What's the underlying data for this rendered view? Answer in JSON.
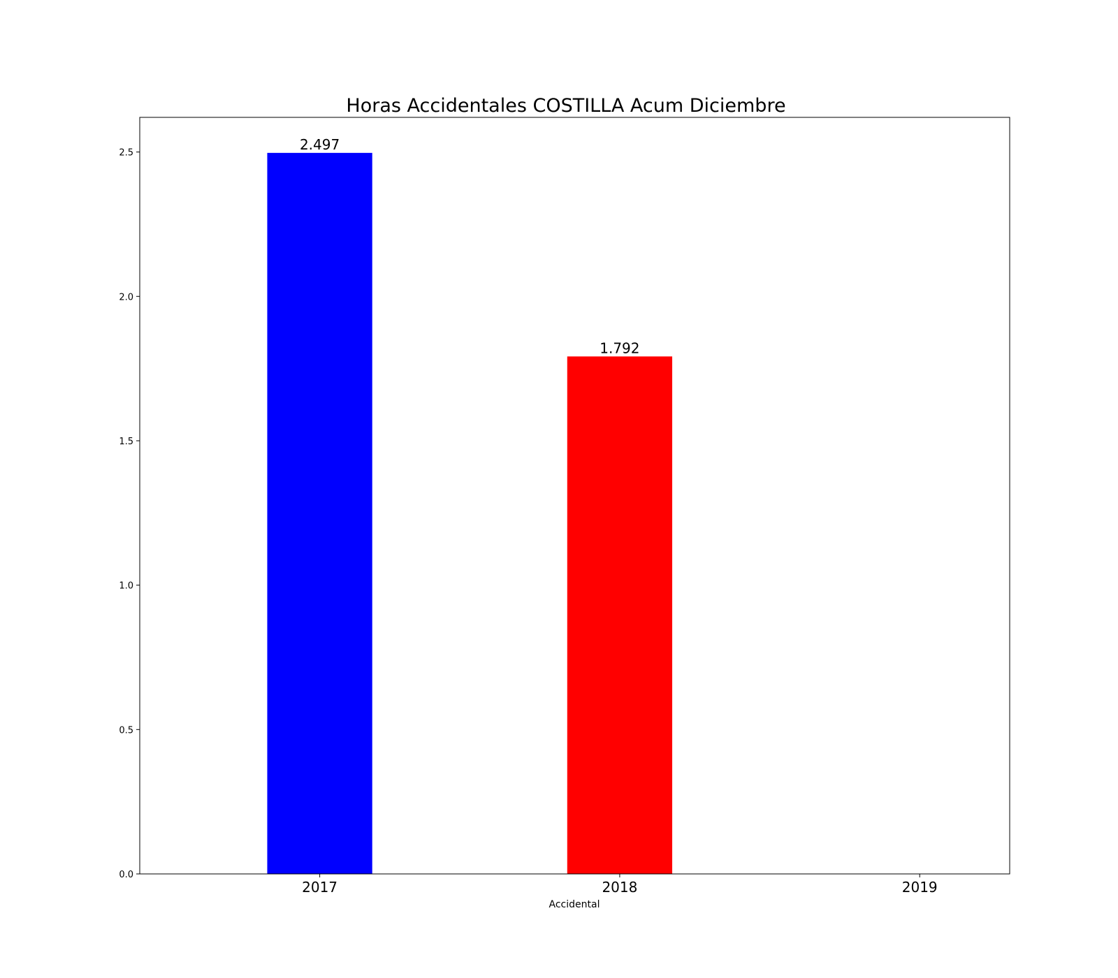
{
  "chart_data": {
    "type": "bar",
    "title": "Horas Accidentales COSTILLA Acum Diciembre",
    "xlabel": "Accidental",
    "ylabel": "",
    "categories": [
      "2017",
      "2018",
      "2019"
    ],
    "values": [
      2.497,
      1.792,
      0
    ],
    "value_labels": [
      "2.497",
      "1.792",
      ""
    ],
    "colors": [
      "#0000ff",
      "#ff0000",
      "#00aa00"
    ],
    "ylim": [
      0,
      2.62
    ],
    "yticks": [
      0.0,
      0.5,
      1.0,
      1.5,
      2.0,
      2.5
    ],
    "ytick_labels": [
      "0.0",
      "0.5",
      "1.0",
      "1.5",
      "2.0",
      "2.5"
    ],
    "grid": false,
    "legend": "none"
  }
}
